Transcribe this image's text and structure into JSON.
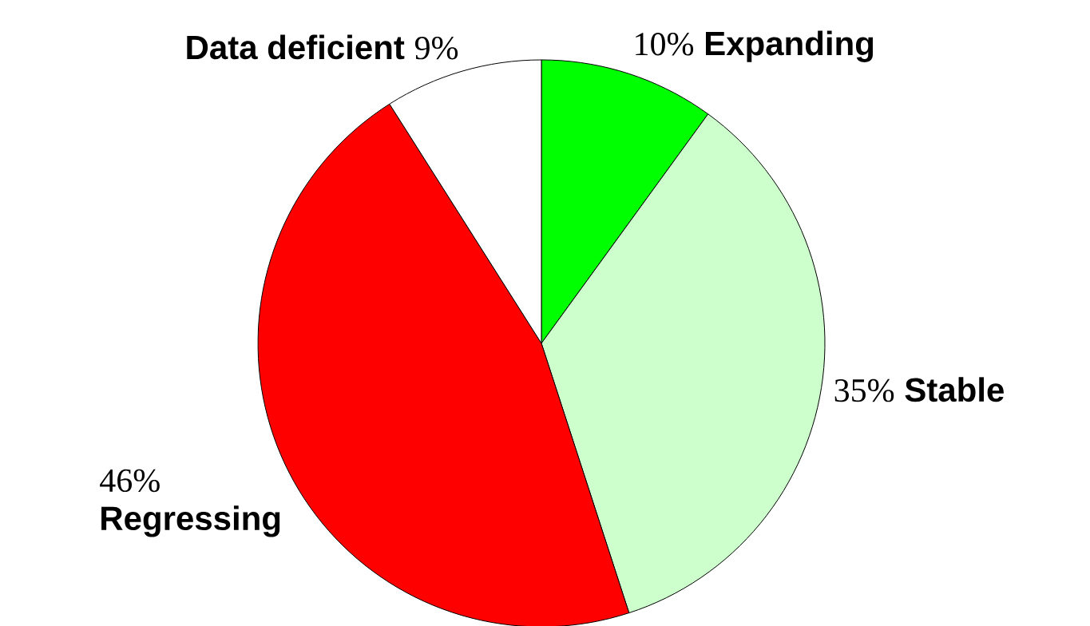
{
  "chart_data": {
    "type": "pie",
    "categories": [
      "Expanding",
      "Stable",
      "Regressing",
      "Data deficient"
    ],
    "values": [
      10,
      35,
      46,
      9
    ],
    "value_labels": [
      "10%",
      "35%",
      "46%",
      "9%"
    ],
    "colors": [
      "#00ff00",
      "#ccffcc",
      "#ff0000",
      "#ffffff"
    ]
  }
}
